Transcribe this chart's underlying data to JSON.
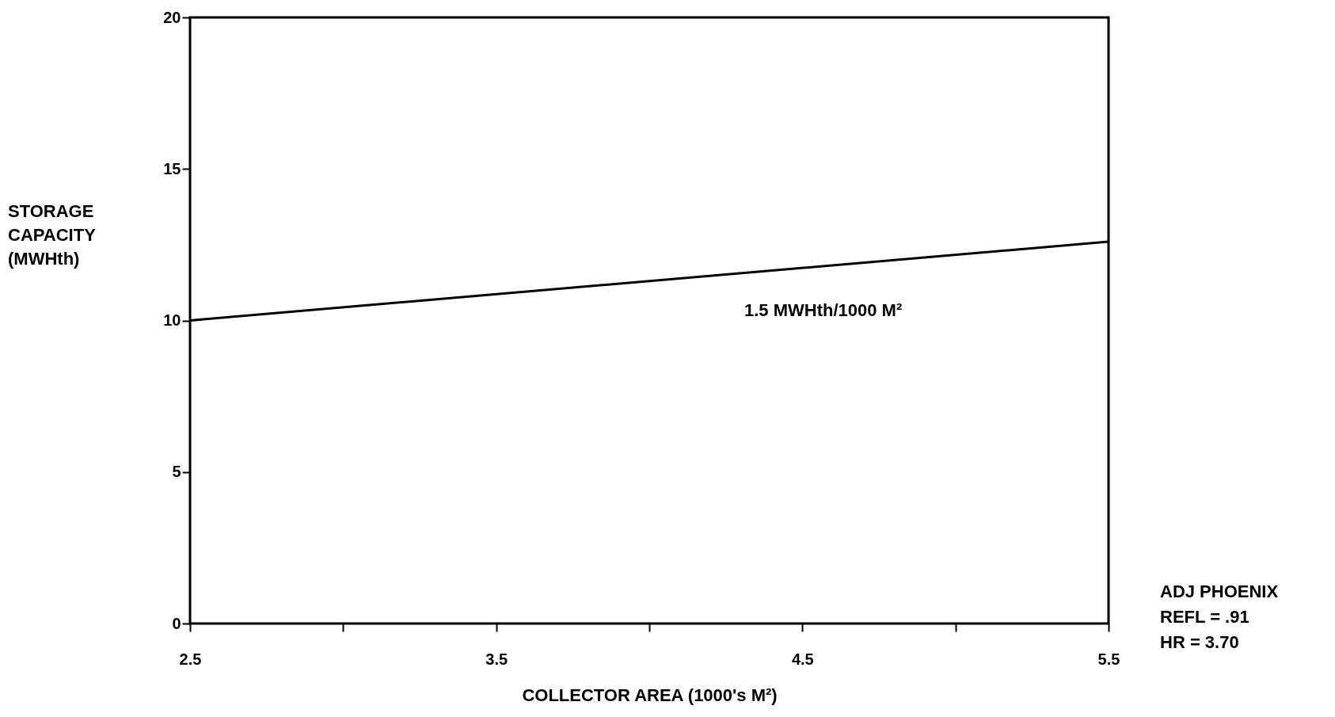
{
  "chart_data": {
    "type": "line",
    "xlabel": "COLLECTOR AREA (1000's M²)",
    "ylabel": "STORAGE CAPACITY (MWHth)",
    "x": [
      2.5,
      5.5
    ],
    "series": [
      {
        "color": "#000000",
        "values": [
          10.0,
          12.6
        ]
      }
    ],
    "xlim": [
      2.5,
      5.5
    ],
    "xticks": [
      2.5,
      {
        "value": 3,
        "label": null
      },
      3.5,
      {
        "value": 4,
        "label": null
      },
      4.5,
      {
        "value": 5,
        "label": null
      },
      5.5
    ],
    "ylim": [
      0,
      20
    ],
    "yticks": [
      0,
      5,
      10,
      15,
      20
    ],
    "grid": false,
    "marker": "none",
    "line_style": "solid",
    "annotations": [
      "1.5 MWHth/1000 M²",
      "ADJ PHOENIX",
      "REFL = .91",
      "HR = 3.70"
    ]
  }
}
